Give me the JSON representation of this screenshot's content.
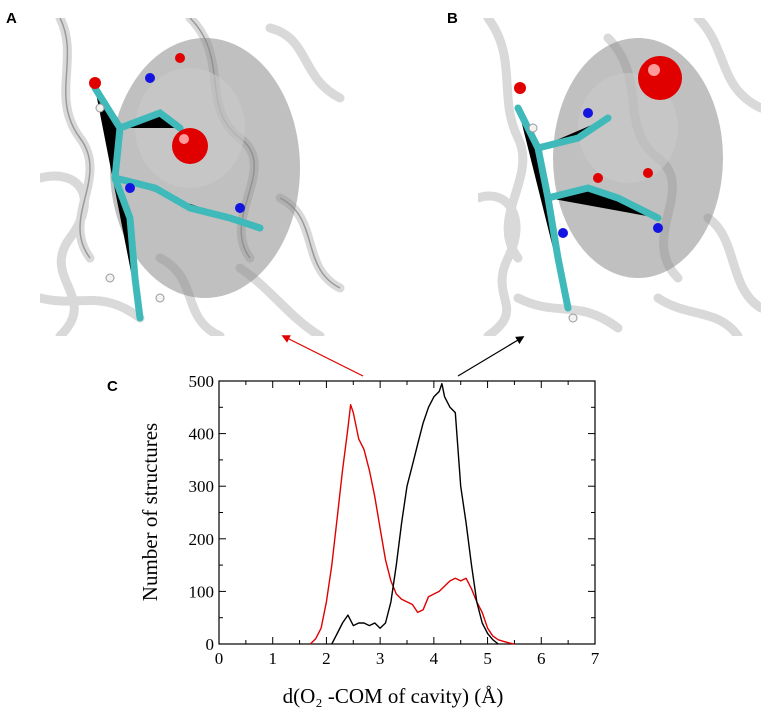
{
  "panels": {
    "a": {
      "letter": "A"
    },
    "b": {
      "letter": "B"
    },
    "c": {
      "letter": "C"
    }
  },
  "colors": {
    "ribbon": "#d9d9d9",
    "cavity": "#8c8c8c",
    "carbon": "#3fb9b9",
    "nitrogen": "#1414e0",
    "oxygen": "#e00000",
    "hydrogen": "#f2f2f2",
    "series_red": "#e00000",
    "series_black": "#000000"
  },
  "chart_data": {
    "type": "line",
    "xlabel": "d(O₂ -COM of cavity) (Å)",
    "ylabel": "Number of structures",
    "xlim": [
      0,
      7
    ],
    "ylim": [
      0,
      500
    ],
    "xticks": [
      "0",
      "1",
      "2",
      "3",
      "4",
      "5",
      "6",
      "7"
    ],
    "yticks": [
      "0",
      "100",
      "200",
      "300",
      "400",
      "500"
    ],
    "grid": false,
    "series": [
      {
        "color": "red",
        "x": [
          1.7,
          1.8,
          1.9,
          2.0,
          2.1,
          2.2,
          2.3,
          2.4,
          2.45,
          2.5,
          2.6,
          2.7,
          2.8,
          2.9,
          3.0,
          3.1,
          3.2,
          3.3,
          3.4,
          3.5,
          3.6,
          3.7,
          3.8,
          3.9,
          4.0,
          4.1,
          4.2,
          4.3,
          4.4,
          4.5,
          4.6,
          4.7,
          4.8,
          4.9,
          5.0,
          5.1,
          5.2,
          5.3,
          5.4,
          5.5
        ],
        "y": [
          0,
          10,
          30,
          80,
          150,
          240,
          330,
          410,
          455,
          440,
          390,
          370,
          330,
          280,
          220,
          160,
          120,
          95,
          85,
          80,
          75,
          60,
          65,
          90,
          95,
          100,
          110,
          120,
          125,
          120,
          125,
          105,
          80,
          60,
          30,
          15,
          8,
          5,
          2,
          0
        ]
      },
      {
        "color": "black",
        "x": [
          2.1,
          2.2,
          2.3,
          2.4,
          2.5,
          2.6,
          2.7,
          2.8,
          2.9,
          3.0,
          3.1,
          3.2,
          3.3,
          3.4,
          3.5,
          3.6,
          3.7,
          3.8,
          3.9,
          4.0,
          4.1,
          4.15,
          4.2,
          4.3,
          4.4,
          4.5,
          4.6,
          4.7,
          4.8,
          4.9,
          5.0,
          5.1,
          5.2
        ],
        "y": [
          0,
          20,
          40,
          55,
          35,
          40,
          40,
          35,
          40,
          30,
          40,
          80,
          150,
          230,
          300,
          340,
          380,
          420,
          450,
          470,
          480,
          495,
          470,
          450,
          440,
          300,
          230,
          150,
          80,
          40,
          20,
          8,
          0
        ]
      }
    ]
  }
}
